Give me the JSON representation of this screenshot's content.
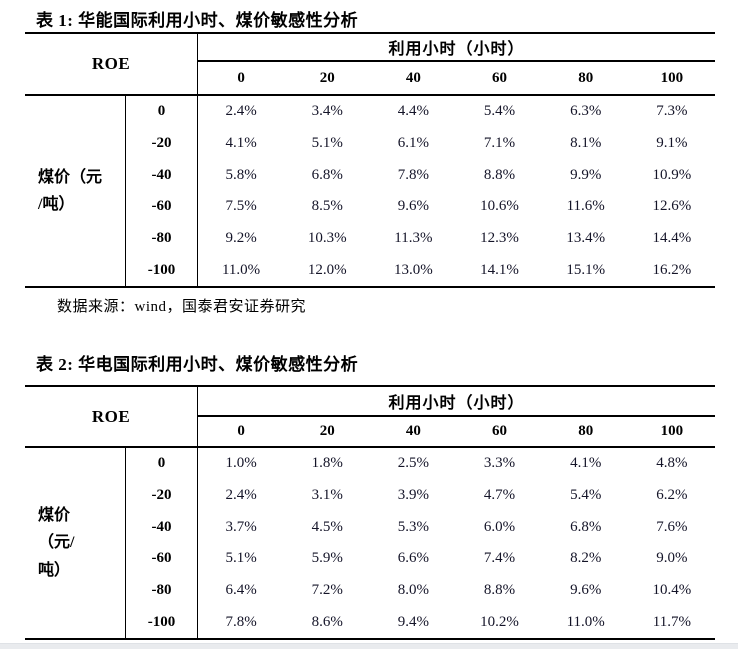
{
  "meta": {
    "value_color": "#141428",
    "footer_bar_color": "#e9ebee"
  },
  "table1": {
    "title": "表 1: 华能国际利用小时、煤价敏感性分析",
    "roe_label": "ROE",
    "col_group_label": "利用小时（小时）",
    "col_headers": [
      "0",
      "20",
      "40",
      "60",
      "80",
      "100"
    ],
    "row_axis_label": "煤价（元\n/吨）",
    "rows": [
      {
        "h": "0",
        "c": [
          "2.4%",
          "3.4%",
          "4.4%",
          "5.4%",
          "6.3%",
          "7.3%"
        ]
      },
      {
        "h": "-20",
        "c": [
          "4.1%",
          "5.1%",
          "6.1%",
          "7.1%",
          "8.1%",
          "9.1%"
        ]
      },
      {
        "h": "-40",
        "c": [
          "5.8%",
          "6.8%",
          "7.8%",
          "8.8%",
          "9.9%",
          "10.9%"
        ]
      },
      {
        "h": "-60",
        "c": [
          "7.5%",
          "8.5%",
          "9.6%",
          "10.6%",
          "11.6%",
          "12.6%"
        ]
      },
      {
        "h": "-80",
        "c": [
          "9.2%",
          "10.3%",
          "11.3%",
          "12.3%",
          "13.4%",
          "14.4%"
        ]
      },
      {
        "h": "-100",
        "c": [
          "11.0%",
          "12.0%",
          "13.0%",
          "14.1%",
          "15.1%",
          "16.2%"
        ]
      }
    ],
    "source": "数据来源：wind，国泰君安证券研究"
  },
  "table2": {
    "title": "表 2: 华电国际利用小时、煤价敏感性分析",
    "roe_label": "ROE",
    "col_group_label": "利用小时（小时）",
    "col_headers": [
      "0",
      "20",
      "40",
      "60",
      "80",
      "100"
    ],
    "row_axis_label": "煤价\n（元/\n吨）",
    "rows": [
      {
        "h": "0",
        "c": [
          "1.0%",
          "1.8%",
          "2.5%",
          "3.3%",
          "4.1%",
          "4.8%"
        ]
      },
      {
        "h": "-20",
        "c": [
          "2.4%",
          "3.1%",
          "3.9%",
          "4.7%",
          "5.4%",
          "6.2%"
        ]
      },
      {
        "h": "-40",
        "c": [
          "3.7%",
          "4.5%",
          "5.3%",
          "6.0%",
          "6.8%",
          "7.6%"
        ]
      },
      {
        "h": "-60",
        "c": [
          "5.1%",
          "5.9%",
          "6.6%",
          "7.4%",
          "8.2%",
          "9.0%"
        ]
      },
      {
        "h": "-80",
        "c": [
          "6.4%",
          "7.2%",
          "8.0%",
          "8.8%",
          "9.6%",
          "10.4%"
        ]
      },
      {
        "h": "-100",
        "c": [
          "7.8%",
          "8.6%",
          "9.4%",
          "10.2%",
          "11.0%",
          "11.7%"
        ]
      }
    ]
  }
}
